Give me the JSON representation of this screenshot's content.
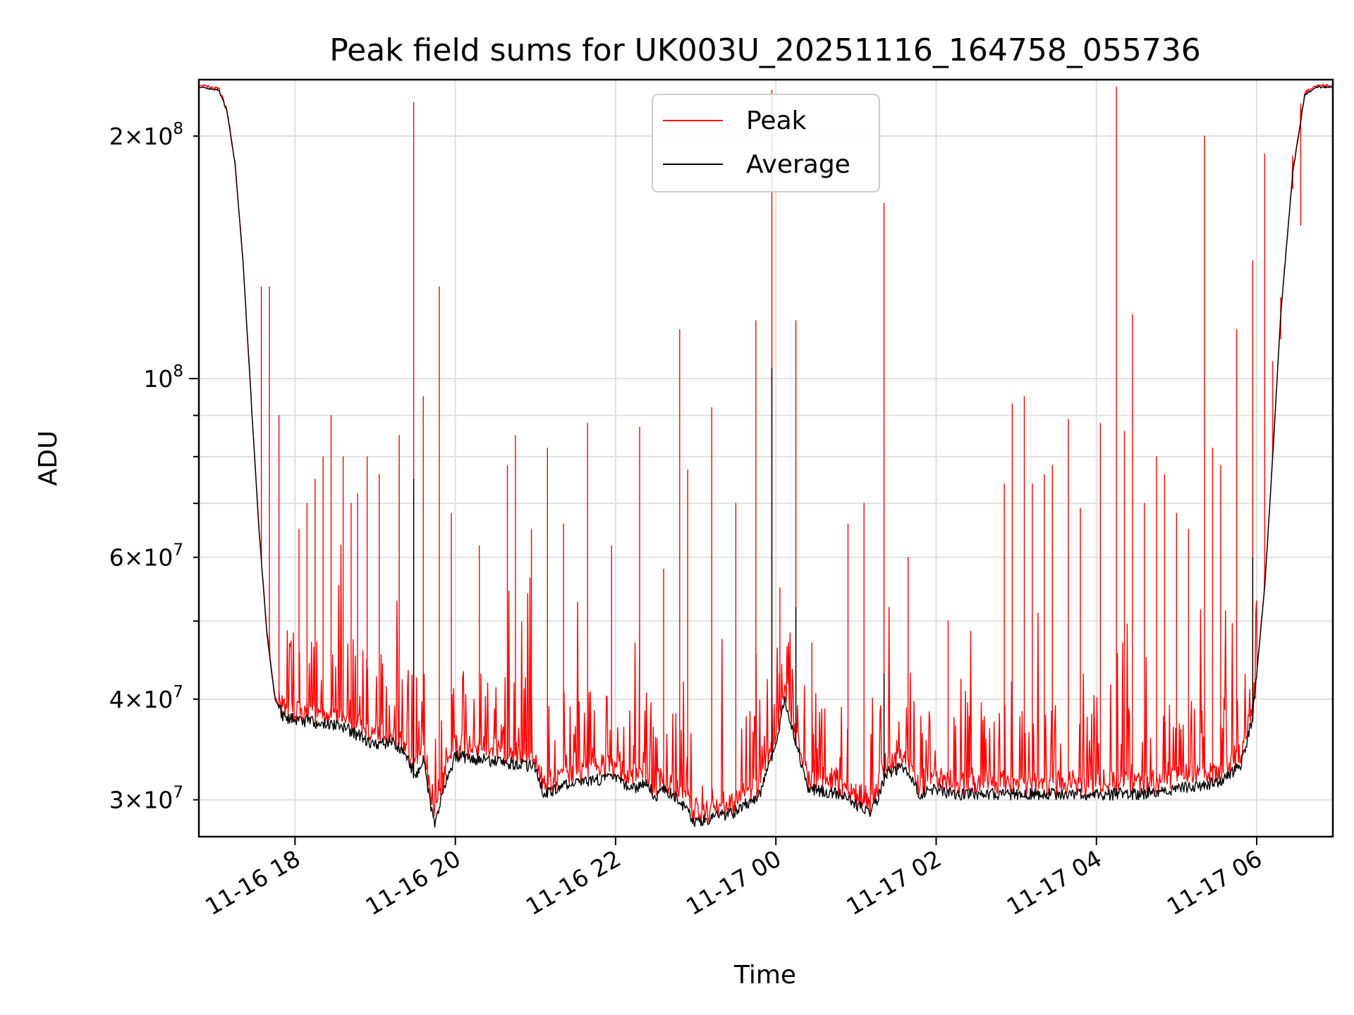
{
  "chart_data": {
    "type": "line",
    "title": "Peak field sums for UK003U_20251116_164758_055736",
    "xlabel": "Time",
    "ylabel": "ADU",
    "yscale": "log",
    "ylim": [
      27000000,
      235000000
    ],
    "xlim_hours": [
      16.8,
      30.95
    ],
    "grid": true,
    "legend_position": "upper center",
    "legend": [
      "Peak",
      "Average"
    ],
    "colors": {
      "peak": "#ff0000",
      "average": "#000000",
      "grid": "#e0e0e0"
    },
    "x_ticks": [
      {
        "label": "11-16 18",
        "hour": 18
      },
      {
        "label": "11-16 20",
        "hour": 20
      },
      {
        "label": "11-16 22",
        "hour": 22
      },
      {
        "label": "11-17 00",
        "hour": 24
      },
      {
        "label": "11-17 02",
        "hour": 26
      },
      {
        "label": "11-17 04",
        "hour": 28
      },
      {
        "label": "11-17 06",
        "hour": 30
      }
    ],
    "y_ticks_major": [
      {
        "label": "10",
        "exp": "8",
        "value": 100000000
      }
    ],
    "y_ticks_minor_labeled": [
      {
        "mant": "3",
        "exp": "7",
        "value": 30000000
      },
      {
        "mant": "4",
        "exp": "7",
        "value": 40000000
      },
      {
        "mant": "6",
        "exp": "7",
        "value": 60000000
      },
      {
        "mant": "2",
        "exp": "8",
        "value": 200000000
      }
    ],
    "y_ticks_minor_unlabeled": [
      50000000,
      70000000,
      80000000,
      90000000
    ],
    "series": [
      {
        "name": "Average",
        "points": [
          [
            16.8,
            230000000
          ],
          [
            17.05,
            228000000
          ],
          [
            17.15,
            215000000
          ],
          [
            17.25,
            185000000
          ],
          [
            17.35,
            140000000
          ],
          [
            17.45,
            95000000
          ],
          [
            17.55,
            65000000
          ],
          [
            17.65,
            48000000
          ],
          [
            17.75,
            40000000
          ],
          [
            17.85,
            38000000
          ],
          [
            18.2,
            37500000
          ],
          [
            18.6,
            37000000
          ],
          [
            18.8,
            36000000
          ],
          [
            19.0,
            35000000
          ],
          [
            19.2,
            35500000
          ],
          [
            19.4,
            34000000
          ],
          [
            19.5,
            32000000
          ],
          [
            19.6,
            34000000
          ],
          [
            19.7,
            29000000
          ],
          [
            19.75,
            28000000
          ],
          [
            19.85,
            31000000
          ],
          [
            20.0,
            34000000
          ],
          [
            20.5,
            33500000
          ],
          [
            21.0,
            33000000
          ],
          [
            21.1,
            30500000
          ],
          [
            21.5,
            31500000
          ],
          [
            22.0,
            32000000
          ],
          [
            22.2,
            31000000
          ],
          [
            22.4,
            31500000
          ],
          [
            22.5,
            30000000
          ],
          [
            22.6,
            31000000
          ],
          [
            22.8,
            30000000
          ],
          [
            23.0,
            28000000
          ],
          [
            23.2,
            28500000
          ],
          [
            23.5,
            29000000
          ],
          [
            23.8,
            30500000
          ],
          [
            24.0,
            35000000
          ],
          [
            24.1,
            40000000
          ],
          [
            24.2,
            37000000
          ],
          [
            24.4,
            31000000
          ],
          [
            24.8,
            30500000
          ],
          [
            25.0,
            29500000
          ],
          [
            25.2,
            29000000
          ],
          [
            25.4,
            32500000
          ],
          [
            25.6,
            33000000
          ],
          [
            25.8,
            30500000
          ],
          [
            26.0,
            31000000
          ],
          [
            26.2,
            30500000
          ],
          [
            27.0,
            30500000
          ],
          [
            28.0,
            30500000
          ],
          [
            28.5,
            30500000
          ],
          [
            29.0,
            31000000
          ],
          [
            29.5,
            31500000
          ],
          [
            29.8,
            33000000
          ],
          [
            29.95,
            38000000
          ],
          [
            30.1,
            55000000
          ],
          [
            30.2,
            80000000
          ],
          [
            30.3,
            120000000
          ],
          [
            30.45,
            180000000
          ],
          [
            30.6,
            225000000
          ],
          [
            30.75,
            230000000
          ],
          [
            30.95,
            230000000
          ]
        ]
      },
      {
        "name": "Peak",
        "spikes": [
          [
            17.58,
            130000000
          ],
          [
            17.68,
            130000000
          ],
          [
            17.8,
            90000000
          ],
          [
            18.05,
            65000000
          ],
          [
            18.15,
            70000000
          ],
          [
            18.25,
            75000000
          ],
          [
            18.35,
            80000000
          ],
          [
            18.45,
            90000000
          ],
          [
            18.6,
            80000000
          ],
          [
            18.7,
            70000000
          ],
          [
            18.78,
            72000000
          ],
          [
            18.9,
            80000000
          ],
          [
            19.05,
            76000000
          ],
          [
            19.3,
            85000000
          ],
          [
            19.48,
            220000000
          ],
          [
            19.6,
            95000000
          ],
          [
            19.8,
            130000000
          ],
          [
            19.95,
            68000000
          ],
          [
            20.3,
            62000000
          ],
          [
            20.65,
            78000000
          ],
          [
            20.75,
            85000000
          ],
          [
            20.95,
            65000000
          ],
          [
            21.15,
            82000000
          ],
          [
            21.35,
            66000000
          ],
          [
            21.65,
            88000000
          ],
          [
            21.95,
            62000000
          ],
          [
            22.3,
            87000000
          ],
          [
            22.6,
            58000000
          ],
          [
            22.8,
            115000000
          ],
          [
            22.9,
            77000000
          ],
          [
            23.2,
            92000000
          ],
          [
            23.5,
            70000000
          ],
          [
            23.75,
            118000000
          ],
          [
            23.95,
            228000000
          ],
          [
            24.05,
            55000000
          ],
          [
            24.25,
            118000000
          ],
          [
            24.45,
            47000000
          ],
          [
            24.9,
            66000000
          ],
          [
            25.1,
            70000000
          ],
          [
            25.35,
            165000000
          ],
          [
            25.65,
            60000000
          ],
          [
            26.15,
            50000000
          ],
          [
            26.85,
            74000000
          ],
          [
            26.95,
            93000000
          ],
          [
            27.1,
            95000000
          ],
          [
            27.2,
            74000000
          ],
          [
            27.35,
            76000000
          ],
          [
            27.45,
            78000000
          ],
          [
            27.65,
            89000000
          ],
          [
            27.8,
            69000000
          ],
          [
            28.05,
            88000000
          ],
          [
            28.25,
            230000000
          ],
          [
            28.35,
            86000000
          ],
          [
            28.45,
            120000000
          ],
          [
            28.6,
            70000000
          ],
          [
            28.75,
            80000000
          ],
          [
            28.85,
            76000000
          ],
          [
            29.0,
            68000000
          ],
          [
            29.15,
            65000000
          ],
          [
            29.35,
            200000000
          ],
          [
            29.45,
            82000000
          ],
          [
            29.55,
            78000000
          ],
          [
            29.75,
            115000000
          ],
          [
            29.95,
            140000000
          ],
          [
            30.1,
            190000000
          ],
          [
            30.2,
            105000000
          ],
          [
            30.3,
            112000000
          ],
          [
            30.45,
            172000000
          ],
          [
            30.55,
            155000000
          ]
        ]
      }
    ]
  }
}
